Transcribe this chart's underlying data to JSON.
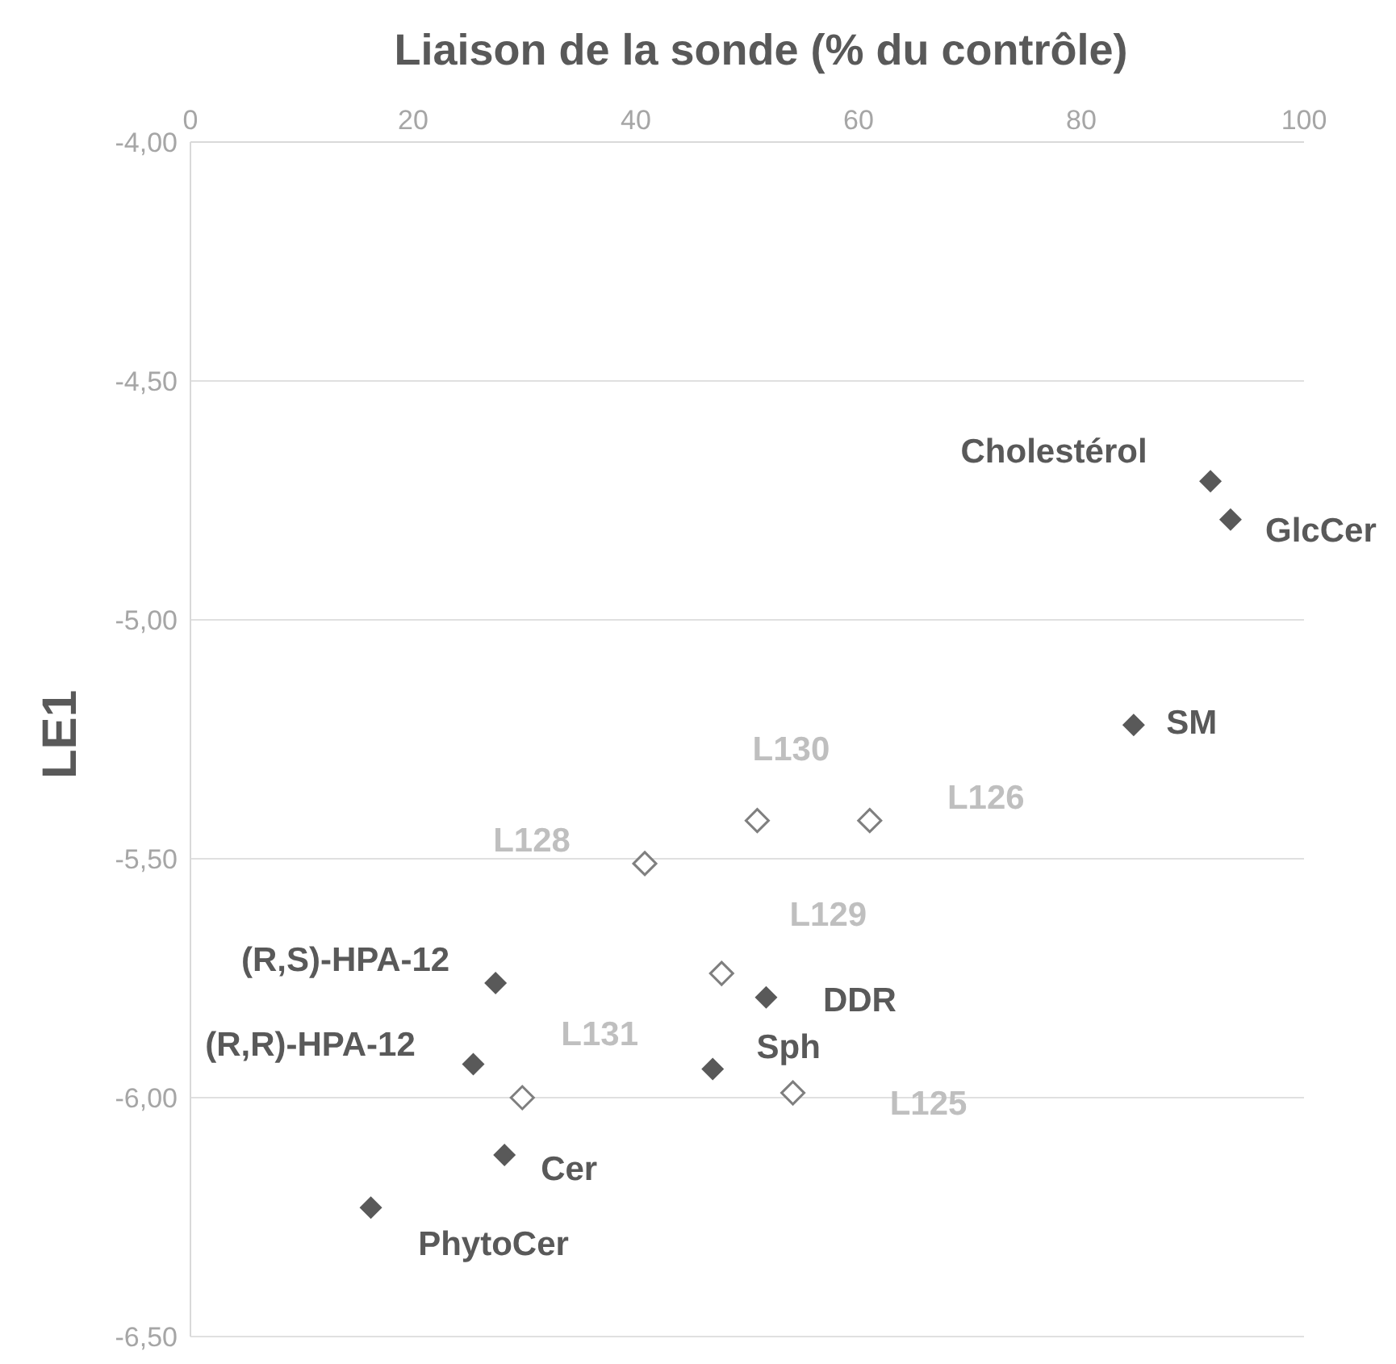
{
  "chart_data": {
    "type": "scatter",
    "title": "Liaison de la sonde (% du contrôle)",
    "ylabel": "LE1",
    "series": [
      {
        "color": "#595959",
        "x": [
          91.6,
          93.4,
          84.7,
          27.4,
          25.4,
          51.7,
          46.9,
          28.2,
          16.2
        ],
        "values": [
          -4.71,
          -4.79,
          -5.22,
          -5.76,
          -5.93,
          -5.79,
          -5.94,
          -6.12,
          -6.23
        ]
      },
      {
        "color": "#7f7f7f",
        "x": [
          50.9,
          61.0,
          40.8,
          47.7,
          29.8,
          54.1
        ],
        "values": [
          -5.42,
          -5.42,
          -5.51,
          -5.74,
          -6.0,
          -5.99
        ]
      }
    ],
    "xlim": [
      0,
      100
    ],
    "xticks": [
      0,
      20,
      40,
      60,
      80,
      100
    ],
    "ylim": [
      -6.5,
      -4
    ],
    "yticks": [
      {
        "value": -6.5,
        "label": "-6,50"
      },
      {
        "value": -6,
        "label": "-6,00"
      },
      {
        "value": -5.5,
        "label": "-5,50"
      },
      {
        "value": -5,
        "label": "-5,00"
      },
      {
        "value": -4.5,
        "label": "-4,50"
      },
      {
        "value": -4,
        "label": "-4,00"
      }
    ],
    "grid": "y",
    "marker": "diamond",
    "annotations": [
      {
        "text": "Cholestérol",
        "x": 91.6,
        "y": -4.71
      },
      {
        "text": "GlcCer",
        "x": 93.4,
        "y": -4.79
      },
      {
        "text": "SM",
        "x": 84.7,
        "y": -5.22
      },
      {
        "text": "L130",
        "x": 50.9,
        "y": -5.42
      },
      {
        "text": "L126",
        "x": 61.0,
        "y": -5.42
      },
      {
        "text": "L128",
        "x": 40.8,
        "y": -5.51
      },
      {
        "text": "L129",
        "x": 47.7,
        "y": -5.74
      },
      {
        "text": "(R,S)-HPA-12",
        "x": 27.4,
        "y": -5.76
      },
      {
        "text": "(R,R)-HPA-12",
        "x": 25.4,
        "y": -5.93
      },
      {
        "text": "DDR",
        "x": 51.7,
        "y": -5.79
      },
      {
        "text": "Sph",
        "x": 46.9,
        "y": -5.94
      },
      {
        "text": "L131",
        "x": 29.8,
        "y": -6.0
      },
      {
        "text": "L125",
        "x": 54.1,
        "y": -5.99
      },
      {
        "text": "Cer",
        "x": 28.2,
        "y": -6.12
      },
      {
        "text": "PhytoCer",
        "x": 16.2,
        "y": -6.23
      }
    ]
  }
}
